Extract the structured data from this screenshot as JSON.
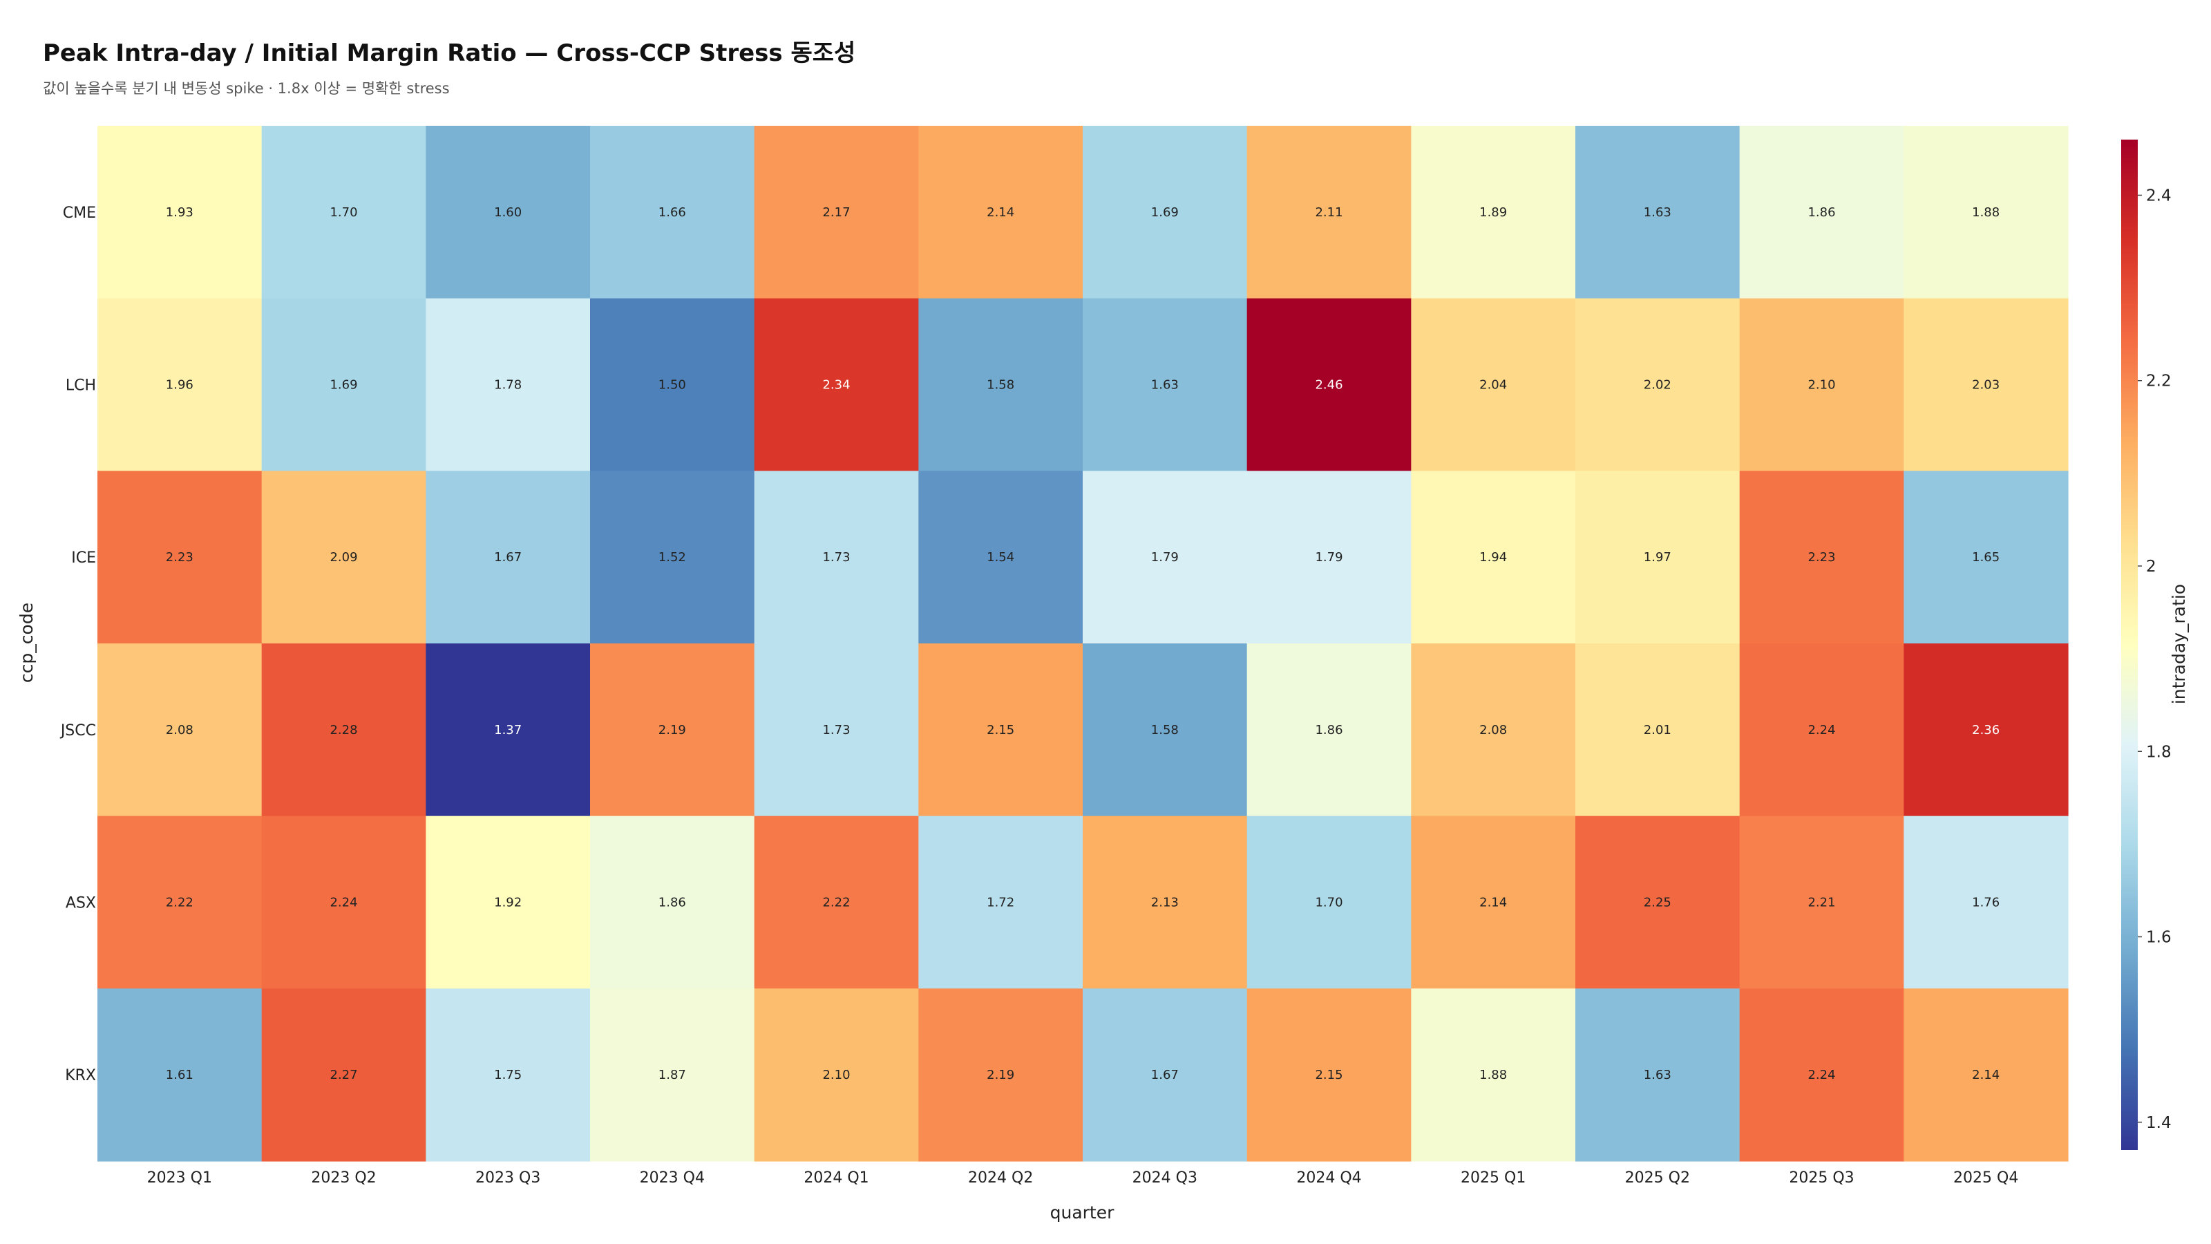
{
  "chart_data": {
    "type": "heatmap",
    "title": "Peak Intra-day / Initial Margin Ratio — Cross-CCP Stress 동조성",
    "subtitle": "값이 높을수록 분기 내 변동성 spike · 1.8x 이상 = 명확한 stress",
    "xlabel": "quarter",
    "ylabel": "ccp_code",
    "colorbar_title": "intraday_ratio",
    "x": [
      "2023 Q1",
      "2023 Q2",
      "2023 Q3",
      "2023 Q4",
      "2024 Q1",
      "2024 Q2",
      "2024 Q3",
      "2024 Q4",
      "2025 Q1",
      "2025 Q2",
      "2025 Q3",
      "2025 Q4"
    ],
    "y": [
      "CME",
      "LCH",
      "ICE",
      "JSCC",
      "ASX",
      "KRX"
    ],
    "z": [
      [
        1.93,
        1.7,
        1.6,
        1.66,
        2.17,
        2.14,
        1.69,
        2.11,
        1.89,
        1.63,
        1.86,
        1.88
      ],
      [
        1.96,
        1.69,
        1.78,
        1.5,
        2.34,
        1.58,
        1.63,
        2.46,
        2.04,
        2.02,
        2.1,
        2.03
      ],
      [
        2.23,
        2.09,
        1.67,
        1.52,
        1.73,
        1.54,
        1.79,
        1.79,
        1.94,
        1.97,
        2.23,
        1.65
      ],
      [
        2.08,
        2.28,
        1.37,
        2.19,
        1.73,
        2.15,
        1.58,
        1.86,
        2.08,
        2.01,
        2.24,
        2.36
      ],
      [
        2.22,
        2.24,
        1.92,
        1.86,
        2.22,
        1.72,
        2.13,
        1.7,
        2.14,
        2.25,
        2.21,
        1.76
      ],
      [
        1.61,
        2.27,
        1.75,
        1.87,
        2.1,
        2.19,
        1.67,
        2.15,
        1.88,
        1.63,
        2.24,
        2.14
      ]
    ],
    "zmin": 1.37,
    "zmax": 2.46,
    "colorscale": "RdYlBu_r",
    "colorscale_stops": [
      "#313695",
      "#4575b4",
      "#74add1",
      "#abd9e9",
      "#e0f3f8",
      "#ffffbf",
      "#fee090",
      "#fdae61",
      "#f46d43",
      "#d73027",
      "#a50026"
    ],
    "colorbar_ticks": [
      "1.4",
      "1.6",
      "1.8",
      "2",
      "2.2",
      "2.4"
    ],
    "colorbar_tick_values": [
      1.4,
      1.6,
      1.8,
      2.0,
      2.2,
      2.4
    ],
    "show_cell_labels": true,
    "grid": false,
    "legend": "colorbar-right"
  }
}
